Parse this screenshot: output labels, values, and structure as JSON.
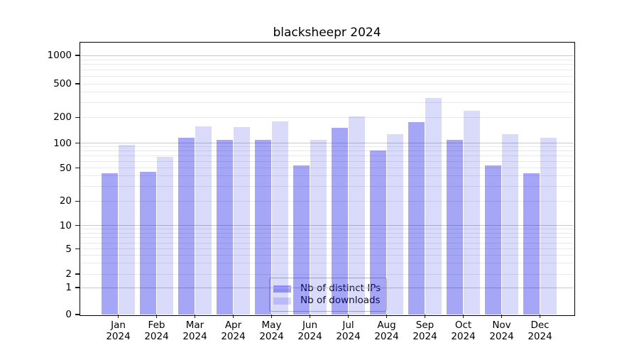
{
  "figure": {
    "background": "#ffffff"
  },
  "chart_data": {
    "type": "bar",
    "title": "blacksheepr 2024",
    "x": {
      "months": [
        "Jan",
        "Feb",
        "Mar",
        "Apr",
        "May",
        "Jun",
        "Jul",
        "Aug",
        "Sep",
        "Oct",
        "Nov",
        "Dec"
      ],
      "year": "2024"
    },
    "series": [
      {
        "name": "Nb of distinct IPs",
        "color": "#a6a6f6",
        "fill_rgba": "rgba(0,0,230,0.35)",
        "values": [
          43,
          45,
          116,
          110,
          110,
          54,
          150,
          82,
          175,
          110,
          54,
          43
        ]
      },
      {
        "name": "Nb of downloads",
        "color": "#dadafb",
        "fill_rgba": "rgba(0,0,230,0.145)",
        "values": [
          96,
          68,
          156,
          154,
          180,
          110,
          205,
          127,
          340,
          240,
          127,
          115
        ]
      }
    ],
    "y_axis": {
      "scale": "symlog",
      "ticks": [
        0,
        1,
        2,
        5,
        10,
        20,
        50,
        100,
        200,
        500,
        1000
      ]
    },
    "grid": {
      "major_color": "#c9c9c9",
      "minor_color": "#e9e9e9"
    },
    "legend": {
      "position": "lower-center"
    }
  }
}
